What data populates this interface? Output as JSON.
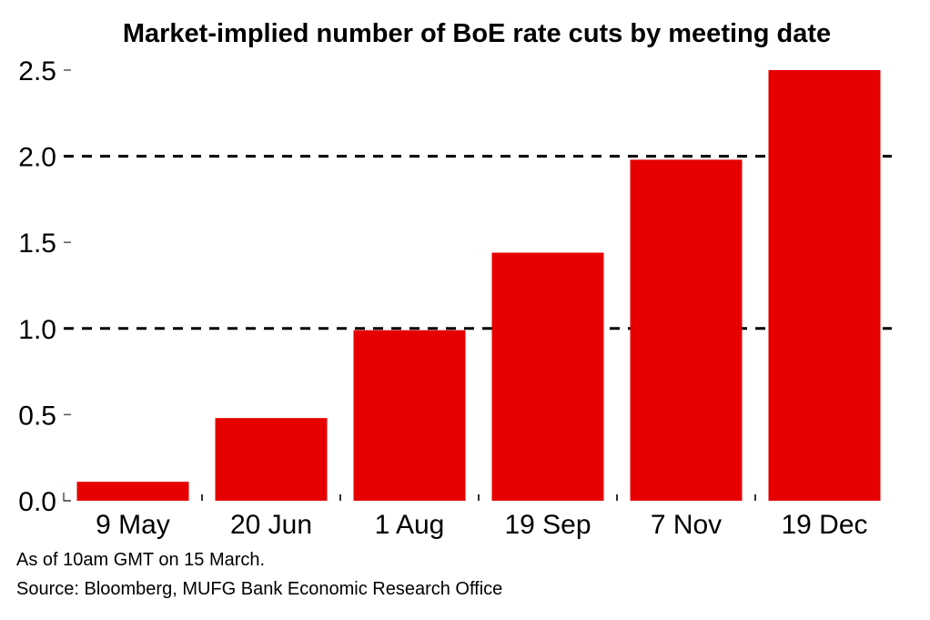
{
  "chart_data": {
    "type": "bar",
    "title": "Market-implied number of BoE rate cuts by meeting date",
    "xlabel": "",
    "ylabel": "",
    "categories": [
      "9 May",
      "20 Jun",
      "1 Aug",
      "19 Sep",
      "7 Nov",
      "19 Dec"
    ],
    "values": [
      0.11,
      0.48,
      0.99,
      1.44,
      1.98,
      2.5
    ],
    "ylim": [
      0,
      2.5
    ],
    "yticks": [
      "0.0",
      "0.5",
      "1.0",
      "1.5",
      "2.0",
      "2.5"
    ],
    "ytick_values": [
      0,
      0.5,
      1.0,
      1.5,
      2.0,
      2.5
    ],
    "dashed_gridlines_at": [
      1.0,
      2.0
    ],
    "legend": "none",
    "bar_color": "#e60000"
  },
  "footnotes": {
    "note": "As of 10am GMT on 15 March.",
    "source": "Source: Bloomberg, MUFG Bank Economic Research Office"
  }
}
